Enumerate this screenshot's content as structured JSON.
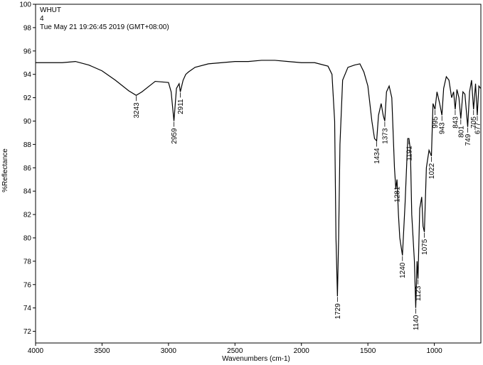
{
  "chart_data": {
    "type": "line",
    "title": [
      "WHUT",
      "4",
      "Tue May 21 19:26:45 2019 (GMT+08:00)"
    ],
    "xlabel": "Wavenumbers (cm-1)",
    "ylabel": "%Reflectance",
    "color": "#000000",
    "x": [
      4000,
      3900,
      3800,
      3700,
      3600,
      3500,
      3400,
      3300,
      3243,
      3200,
      3100,
      3000,
      2980,
      2959,
      2940,
      2920,
      2911,
      2890,
      2870,
      2850,
      2800,
      2700,
      2600,
      2500,
      2400,
      2300,
      2200,
      2100,
      2000,
      1900,
      1800,
      1770,
      1750,
      1740,
      1729,
      1720,
      1710,
      1690,
      1650,
      1600,
      1560,
      1530,
      1500,
      1470,
      1450,
      1434,
      1420,
      1400,
      1385,
      1373,
      1360,
      1340,
      1320,
      1300,
      1290,
      1281,
      1270,
      1260,
      1240,
      1220,
      1200,
      1191,
      1180,
      1170,
      1150,
      1140,
      1130,
      1123,
      1110,
      1095,
      1085,
      1075,
      1060,
      1040,
      1022,
      1010,
      995,
      980,
      960,
      943,
      930,
      910,
      890,
      870,
      855,
      843,
      830,
      815,
      801,
      785,
      770,
      749,
      735,
      720,
      705,
      690,
      677,
      665,
      652
    ],
    "values": [
      95.0,
      95.0,
      95.0,
      95.1,
      94.8,
      94.3,
      93.5,
      92.6,
      92.2,
      92.5,
      93.4,
      93.3,
      92.5,
      90.0,
      92.8,
      93.2,
      92.5,
      93.5,
      94.0,
      94.2,
      94.6,
      94.9,
      95.0,
      95.1,
      95.1,
      95.2,
      95.2,
      95.1,
      95.0,
      95.0,
      94.7,
      94.0,
      90.0,
      80.0,
      75.0,
      80.0,
      88.0,
      93.5,
      94.6,
      94.8,
      94.9,
      94.2,
      93.0,
      90.0,
      88.5,
      88.3,
      90.5,
      91.5,
      90.5,
      90.0,
      92.5,
      93.0,
      92.0,
      86.0,
      84.2,
      85.0,
      82.0,
      80.0,
      78.5,
      83.0,
      88.5,
      88.5,
      87.5,
      82.0,
      78.0,
      74.0,
      78.0,
      76.5,
      82.5,
      83.5,
      81.0,
      80.5,
      86.0,
      87.5,
      87.0,
      91.5,
      91.0,
      92.5,
      91.5,
      90.5,
      92.8,
      93.8,
      93.5,
      92.0,
      92.5,
      91.0,
      92.7,
      92.0,
      90.2,
      92.5,
      92.3,
      89.5,
      92.5,
      93.5,
      91.0,
      93.2,
      90.5,
      93.0,
      92.8
    ],
    "peaks": [
      3243,
      2959,
      2911,
      1729,
      1434,
      1373,
      1281,
      1240,
      1191,
      1140,
      1123,
      1075,
      1022,
      995,
      943,
      843,
      801,
      749,
      705,
      677
    ],
    "xlim": [
      4000,
      650
    ],
    "ylim": [
      71,
      100
    ],
    "xticks": [
      4000,
      3500,
      3000,
      2500,
      2000,
      1500,
      1000
    ],
    "yticks": [
      72,
      74,
      76,
      78,
      80,
      82,
      84,
      86,
      88,
      90,
      92,
      94,
      96,
      98,
      100
    ]
  }
}
